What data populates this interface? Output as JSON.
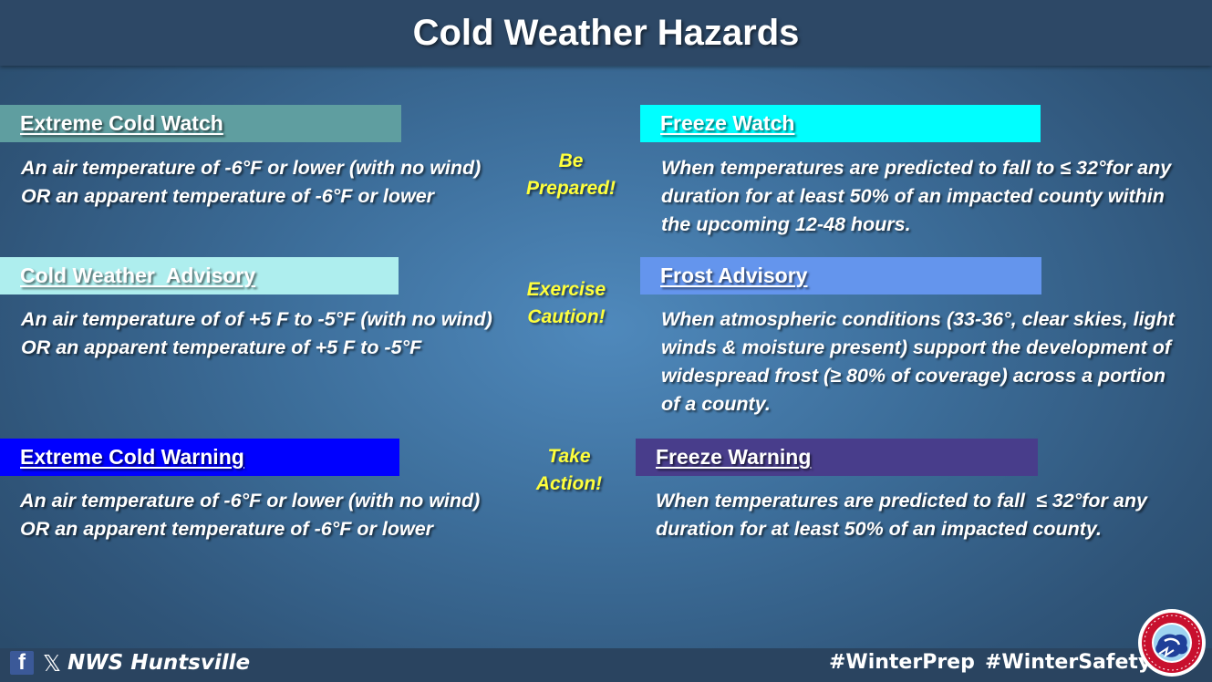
{
  "title": "Cold Weather Hazards",
  "colors": {
    "extreme_cold_watch": "#5f9ea0",
    "cold_weather_advisory": "#aeeeee",
    "extreme_cold_warning": "#0000ff",
    "freeze_watch": "#00ffff",
    "frost_advisory": "#6495ed",
    "freeze_warning": "#483d8b",
    "cue_text": "#ffff3c"
  },
  "hazards": {
    "extreme_cold_watch": {
      "label": "Extreme Cold Watch",
      "lines": [
        "An air temperature of -6°F or lower (with no wind)",
        "OR an apparent temperature of -6°F or lower"
      ]
    },
    "cold_weather_advisory": {
      "label": "Cold Weather  Advisory",
      "lines": [
        "An air temperature of of +5 F to -5°F (with no wind)",
        "OR an apparent temperature of +5 F to -5°F"
      ]
    },
    "extreme_cold_warning": {
      "label": "Extreme Cold Warning",
      "lines": [
        "An air temperature of -6°F or lower (with no wind)",
        "OR an apparent temperature of -6°F or lower"
      ]
    },
    "freeze_watch": {
      "label": "Freeze Watch",
      "lines": [
        "When temperatures are predicted to fall to ≤ 32°for any",
        "duration for at least 50% of an impacted county within",
        "the upcoming 12-48 hours."
      ]
    },
    "frost_advisory": {
      "label": "Frost Advisory",
      "lines": [
        "When atmospheric conditions (33-36°, clear skies, light",
        "winds & moisture present) support the development of",
        "widespread frost (≥ 80% of coverage) across a portion",
        "of a county."
      ]
    },
    "freeze_warning": {
      "label": "Freeze Warning",
      "lines": [
        "When temperatures are predicted to fall  ≤ 32°for any",
        "duration for at least 50% of an impacted county."
      ]
    }
  },
  "cues": {
    "prepared": [
      "Be",
      "Prepared!"
    ],
    "caution": [
      "Exercise",
      "Caution!"
    ],
    "action": [
      "Take",
      "Action!"
    ]
  },
  "footer": {
    "office": "NWS Huntsville",
    "tag1": "#WinterPrep",
    "tag2": "#WinterSafety",
    "icons": [
      "facebook-icon",
      "x-icon",
      "nws-logo"
    ]
  }
}
